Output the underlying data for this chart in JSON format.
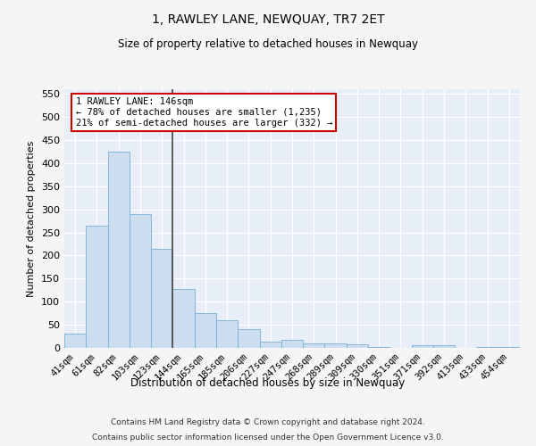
{
  "title": "1, RAWLEY LANE, NEWQUAY, TR7 2ET",
  "subtitle": "Size of property relative to detached houses in Newquay",
  "xlabel": "Distribution of detached houses by size in Newquay",
  "ylabel": "Number of detached properties",
  "categories": [
    "41sqm",
    "61sqm",
    "82sqm",
    "103sqm",
    "123sqm",
    "144sqm",
    "165sqm",
    "185sqm",
    "206sqm",
    "227sqm",
    "247sqm",
    "268sqm",
    "289sqm",
    "309sqm",
    "330sqm",
    "351sqm",
    "371sqm",
    "392sqm",
    "413sqm",
    "433sqm",
    "454sqm"
  ],
  "values": [
    30,
    265,
    425,
    290,
    215,
    128,
    76,
    60,
    40,
    13,
    17,
    10,
    10,
    8,
    2,
    0,
    5,
    5,
    0,
    2,
    2
  ],
  "bar_color": "#ccddf0",
  "bar_edge_color": "#7aafd4",
  "ylim": [
    0,
    560
  ],
  "yticks": [
    0,
    50,
    100,
    150,
    200,
    250,
    300,
    350,
    400,
    450,
    500,
    550
  ],
  "annotation_text": "1 RAWLEY LANE: 146sqm\n← 78% of detached houses are smaller (1,235)\n21% of semi-detached houses are larger (332) →",
  "annotation_box_color": "#ffffff",
  "annotation_box_edge": "#cc0000",
  "footer1": "Contains HM Land Registry data © Crown copyright and database right 2024.",
  "footer2": "Contains public sector information licensed under the Open Government Licence v3.0.",
  "bg_color": "#e8eef8",
  "fig_bg_color": "#f5f5f5",
  "grid_color": "#ffffff",
  "vline_x": 4.5,
  "vline_color": "#444444"
}
